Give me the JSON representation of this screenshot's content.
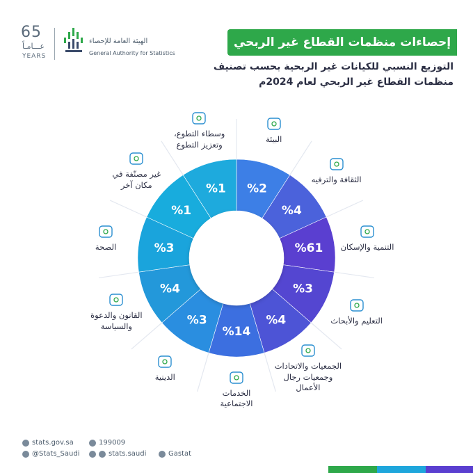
{
  "header": {
    "years_number": "65",
    "years_ar": "عـــامـاً",
    "years_en": "YEARS",
    "org_ar": "الهيئة العامة للإحصاء",
    "org_en": "General Authority for Statistics",
    "title": "إحصاءات منظمات القطاع غير الربحي",
    "subtitle_line1": "التوزيع النسبي للكيانات غير الربحية بحسب تصنيف",
    "subtitle_line2": "منظمات القطاع غير الربحي لعام 2024م"
  },
  "colors": {
    "green": "#2ea84a",
    "purple": "#5a3fd0",
    "cyan": "#1ea6dc"
  },
  "chart_data": {
    "type": "pie",
    "title": "التوزيع النسبي للكيانات غير الربحية بحسب تصنيف منظمات القطاع غير الربحي لعام 2024م",
    "categories": [
      "البيئة",
      "الثقافة والترفيه",
      "التنمية والإسكان",
      "التعليم والأبحاث",
      "الجمعيات والاتحادات وجمعيات رجال الأعمال",
      "الخدمات الاجتماعية",
      "الدينية",
      "القانون والدعوة والسياسة",
      "الصحة",
      "غير مصنّفة في مكان آخر",
      "وسطاء التطوع، وتعزيز التطوع"
    ],
    "values": [
      2,
      4,
      61,
      3,
      4,
      14,
      3,
      4,
      3,
      1,
      1
    ],
    "value_labels": [
      "%2",
      "%4",
      "%61",
      "%3",
      "%4",
      "%14",
      "%3",
      "%4",
      "%3",
      "%1",
      "%1"
    ],
    "label_lines": [
      [
        "البيئة"
      ],
      [
        "الثقافة والترفيه"
      ],
      [
        "التنمية والإسكان"
      ],
      [
        "التعليم والأبحاث"
      ],
      [
        "الجمعيات والاتحادات",
        "وجمعيات رجال",
        "الأعمال"
      ],
      [
        "الخدمات",
        "الاجتماعية"
      ],
      [
        "الدينية"
      ],
      [
        "القانون والدعوة",
        "والسياسة"
      ],
      [
        "الصحة"
      ],
      [
        "غير مصنّفة في",
        "مكان آخر"
      ],
      [
        "وسطاء التطوع،",
        "وتعزيز التطوع"
      ]
    ],
    "icons": [
      "plant-hand-icon",
      "theater-icon",
      "building-icon",
      "study-icon",
      "briefcase-icon",
      "hands-people-icon",
      "mosque-icon",
      "law-document-icon",
      "heart-health-icon",
      "flowchart-icon",
      "heart-hands-icon"
    ],
    "legend": "none"
  },
  "footer": {
    "website": "stats.gov.sa",
    "phone": "199009",
    "twitter": "@Stats_Saudi",
    "social": "stats.saudi",
    "linkedin": "Gastat"
  }
}
